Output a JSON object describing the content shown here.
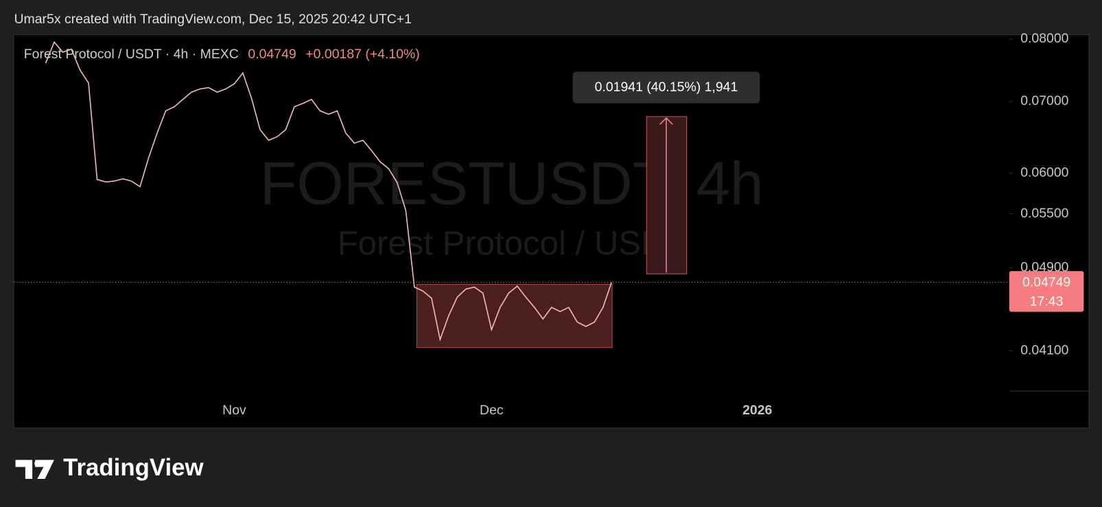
{
  "header": {
    "text": "Umar5x created with TradingView.com, Dec 15, 2025 20:42 UTC+1"
  },
  "legend": {
    "symbol": "Forest Protocol / USDT · 4h · MEXC",
    "price": "0.04749",
    "change": "+0.00187 (+4.10%)"
  },
  "watermark": {
    "ticker": "FORESTUSDT, 4h",
    "name": "Forest Protocol / USDT"
  },
  "measure": {
    "label": "0.01941 (40.15%) 1,941"
  },
  "price_tag": {
    "price": "0.04749",
    "countdown": "17:43"
  },
  "footer": {
    "brand": "TradingView"
  },
  "chart_data": {
    "type": "line",
    "color": "#f2b8b5",
    "log_scale": true,
    "grid": false,
    "categories": [
      null,
      null,
      null,
      null,
      null,
      null,
      null,
      null,
      null,
      null,
      null,
      null,
      null,
      null,
      null,
      null,
      null,
      null,
      null,
      null,
      null,
      null,
      "Nov",
      null,
      null,
      null,
      null,
      null,
      null,
      null,
      null,
      null,
      null,
      null,
      null,
      null,
      null,
      null,
      null,
      null,
      null,
      null,
      null,
      null,
      null,
      null,
      null,
      null,
      null,
      null,
      null,
      null,
      "Dec",
      null,
      null,
      null,
      null,
      null,
      null,
      null,
      null,
      null,
      null,
      null,
      null,
      null,
      null,
      null,
      null,
      null,
      null,
      null,
      null,
      null,
      null,
      null,
      null,
      null,
      null,
      null,
      null,
      null,
      null,
      "2026"
    ],
    "values": [
      0.076,
      0.0795,
      0.0778,
      0.0783,
      0.0749,
      0.0728,
      0.0592,
      0.0589,
      0.059,
      0.0593,
      0.059,
      0.0583,
      0.062,
      0.0654,
      0.0686,
      0.0692,
      0.0703,
      0.0714,
      0.0719,
      0.0721,
      0.0714,
      0.0719,
      0.0727,
      0.0744,
      0.0705,
      0.0659,
      0.0644,
      0.0649,
      0.0659,
      0.0692,
      0.0697,
      0.0703,
      0.0686,
      0.0681,
      0.0686,
      0.0654,
      0.064,
      0.0644,
      0.063,
      0.0615,
      0.0606,
      0.0588,
      0.0554,
      0.047,
      0.0466,
      0.0459,
      0.042,
      0.0442,
      0.046,
      0.0468,
      0.047,
      0.0464,
      0.0429,
      0.045,
      0.0464,
      0.0471,
      0.046,
      0.045,
      0.0439,
      0.045,
      0.0446,
      0.045,
      0.0436,
      0.0432,
      0.0436,
      0.045,
      0.04749,
      null,
      null,
      null,
      null,
      null,
      null,
      null,
      null,
      null,
      null,
      null,
      null,
      null,
      null,
      null,
      null,
      null
    ],
    "ylim": [
      0.0376,
      0.0807
    ],
    "yticks": [
      {
        "value": 0.08,
        "label": "0.08000"
      },
      {
        "value": 0.07,
        "label": "0.07000"
      },
      {
        "value": 0.06,
        "label": "0.06000"
      },
      {
        "value": 0.055,
        "label": "0.05500"
      },
      {
        "value": 0.049,
        "label": "0.04900"
      },
      {
        "value": 0.041,
        "label": "0.04100"
      }
    ]
  }
}
